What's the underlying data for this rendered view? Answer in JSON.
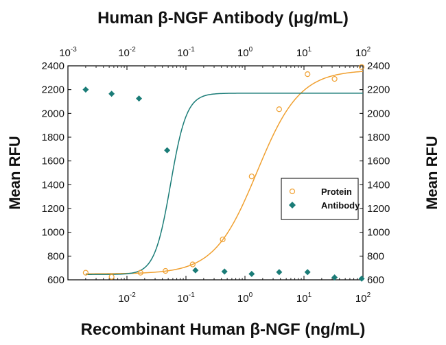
{
  "chart_data": {
    "type": "scatter",
    "title": "Human β-NGF Antibody (μg/mL)",
    "xlabel": "Recombinant Human β-NGF (ng/mL)",
    "ylabel": "Mean RFU",
    "ylabel_right": "Mean RFU",
    "x_scale": "log",
    "xlim": [
      0.001,
      100
    ],
    "ylim": [
      600,
      2400
    ],
    "x_ticks_top": [
      {
        "base": "10",
        "exp": "-3",
        "value": 0.001
      },
      {
        "base": "10",
        "exp": "-2",
        "value": 0.01
      },
      {
        "base": "10",
        "exp": "-1",
        "value": 0.1
      },
      {
        "base": "10",
        "exp": "0",
        "value": 1
      },
      {
        "base": "10",
        "exp": "1",
        "value": 10
      },
      {
        "base": "10",
        "exp": "2",
        "value": 100
      }
    ],
    "x_ticks_bottom": [
      {
        "base": "10",
        "exp": "-2",
        "value": 0.01
      },
      {
        "base": "10",
        "exp": "-1",
        "value": 0.1
      },
      {
        "base": "10",
        "exp": "0",
        "value": 1
      },
      {
        "base": "10",
        "exp": "1",
        "value": 10
      },
      {
        "base": "10",
        "exp": "2",
        "value": 100
      }
    ],
    "y_ticks": [
      "600",
      "800",
      "1000",
      "1200",
      "1400",
      "1600",
      "1800",
      "2000",
      "2200",
      "2400"
    ],
    "legend_position": "center-right",
    "series": [
      {
        "name": "Protein",
        "color": "#f0a030",
        "marker": "open-circle",
        "x": [
          0.002,
          0.0055,
          0.017,
          0.045,
          0.13,
          0.42,
          1.3,
          3.8,
          11.5,
          33,
          95
        ],
        "y": [
          660,
          625,
          660,
          675,
          730,
          940,
          1470,
          2035,
          2330,
          2290,
          2390
        ],
        "fit": {
          "bottom": 650,
          "top": 2365,
          "ec50": 1.6,
          "hill": 1.2
        }
      },
      {
        "name": "Antibody",
        "color": "#1a7c77",
        "marker": "filled-diamond",
        "x": [
          0.002,
          0.0055,
          0.016,
          0.048,
          0.145,
          0.45,
          1.3,
          3.8,
          11.5,
          33,
          95
        ],
        "y": [
          2200,
          2165,
          2125,
          1690,
          680,
          670,
          650,
          665,
          665,
          620,
          610
        ],
        "fit": {
          "bottom": 645,
          "top": 2170,
          "ec50": 0.055,
          "hill": 3.2
        }
      }
    ]
  }
}
